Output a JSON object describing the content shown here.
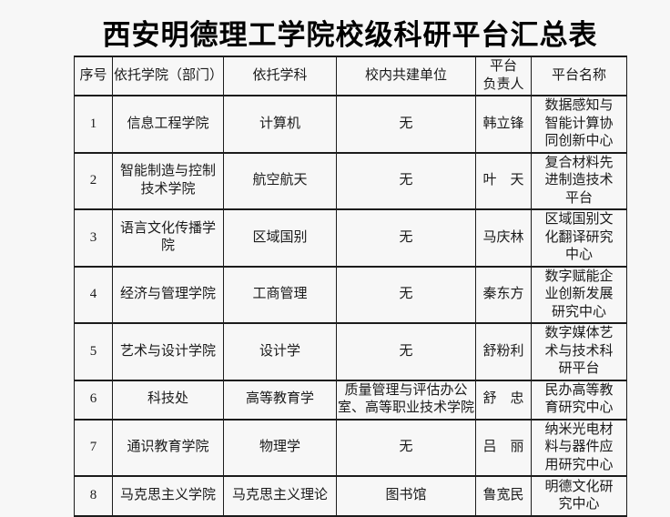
{
  "page": {
    "title": "西安明德理工学院校级科研平台汇总表",
    "background_color": "#f7f7f7",
    "text_color": "#1a1a1a",
    "border_color": "#1c1c1c"
  },
  "table": {
    "columns": [
      {
        "label": "序号"
      },
      {
        "label": "依托学院（部门）"
      },
      {
        "label": "依托学科"
      },
      {
        "label": "校内共建单位"
      },
      {
        "label": "平台\n负责人"
      },
      {
        "label": "平台名称"
      }
    ],
    "rows": [
      {
        "index": "1",
        "college": "信息工程学院",
        "discipline": "计算机",
        "co_builder": "无",
        "leader": "韩立锋",
        "platform": "数据感知与\n智能计算协\n同创新中心"
      },
      {
        "index": "2",
        "college": "智能制造与控制\n技术学院",
        "discipline": "航空航天",
        "co_builder": "无",
        "leader": "叶　天",
        "platform": "复合材料先\n进制造技术\n平台"
      },
      {
        "index": "3",
        "college": "语言文化传播学\n院",
        "discipline": "区域国别",
        "co_builder": "无",
        "leader": "马庆林",
        "platform": "区域国别文\n化翻译研究\n中心"
      },
      {
        "index": "4",
        "college": "经济与管理学院",
        "discipline": "工商管理",
        "co_builder": "无",
        "leader": "秦东方",
        "platform": "数字赋能企\n业创新发展\n研究中心"
      },
      {
        "index": "5",
        "college": "艺术与设计学院",
        "discipline": "设计学",
        "co_builder": "无",
        "leader": "舒粉利",
        "platform": "数字媒体艺\n术与技术科\n研平台"
      },
      {
        "index": "6",
        "college": "科技处",
        "discipline": "高等教育学",
        "co_builder": "质量管理与评估办公\n室、高等职业技术学院",
        "leader": "舒　忠",
        "platform": "民办高等教\n育研究中心"
      },
      {
        "index": "7",
        "college": "通识教育学院",
        "discipline": "物理学",
        "co_builder": "无",
        "leader": "吕　丽",
        "platform": "纳米光电材\n料与器件应\n用研究中心"
      },
      {
        "index": "8",
        "college": "马克思主义学院",
        "discipline": "马克思主义理论",
        "co_builder": "图书馆",
        "leader": "鲁宽民",
        "platform": "明德文化研\n究中心"
      }
    ]
  }
}
